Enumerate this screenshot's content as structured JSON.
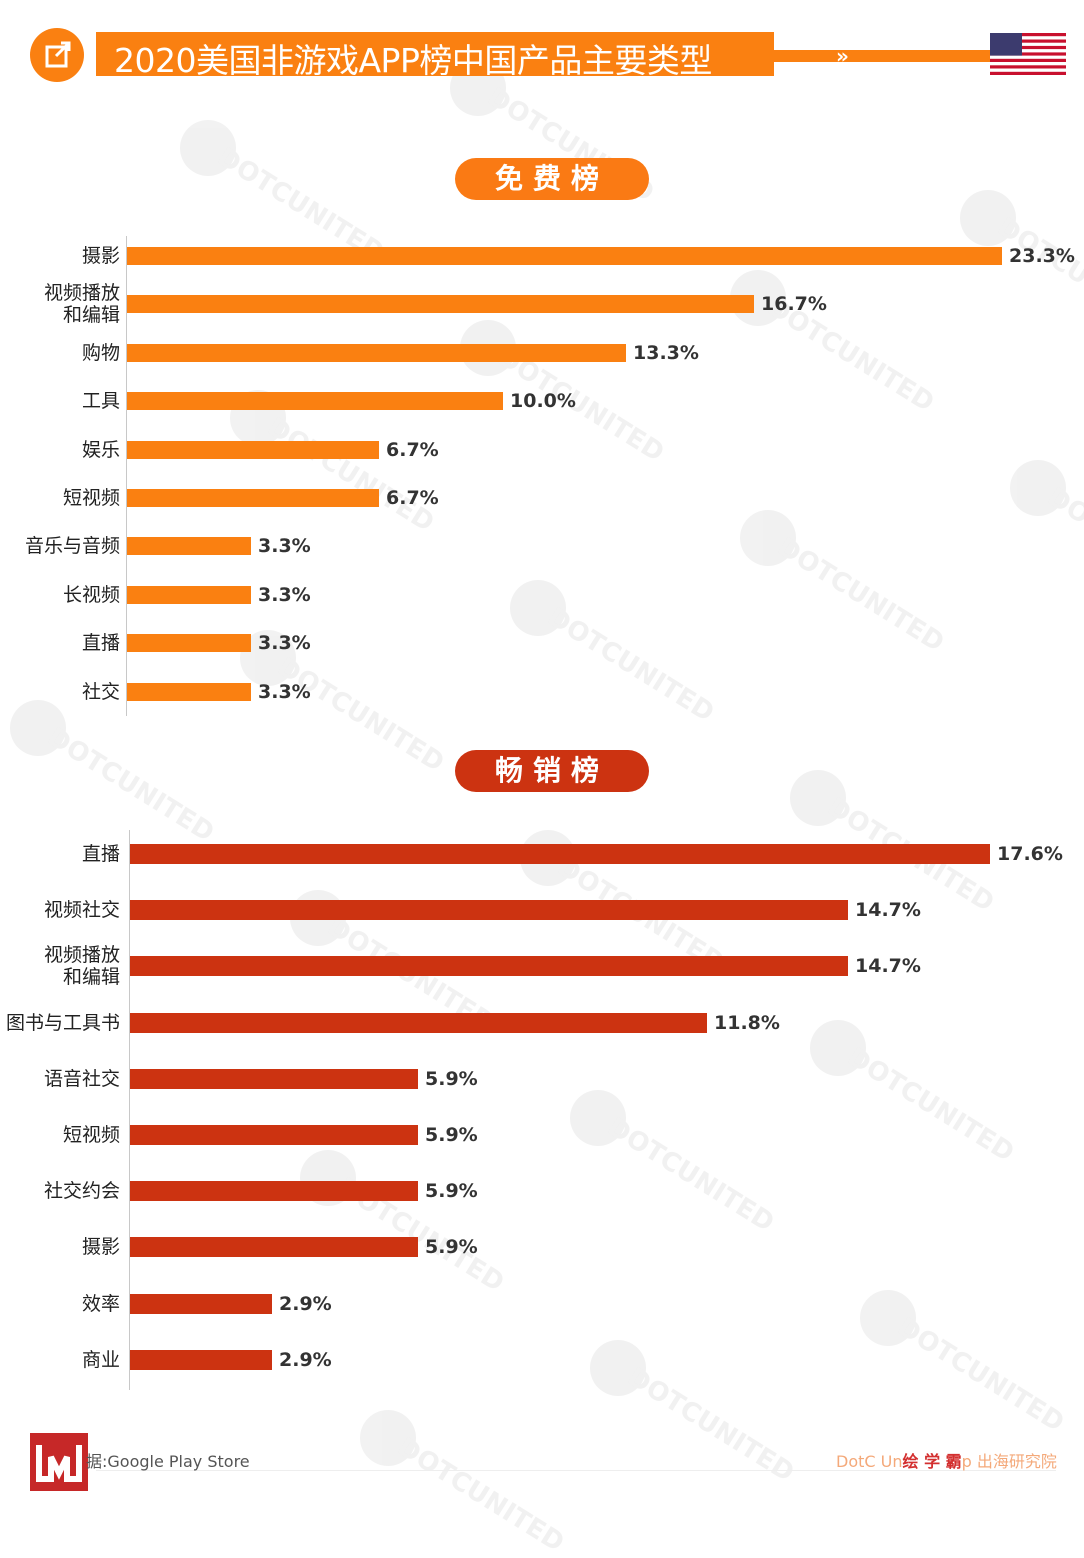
{
  "header": {
    "title": "2020美国非游戏APP榜中国产品主要类型",
    "arrows": "»",
    "flag_icon": "us-flag-icon",
    "accent_color": "#fa8011"
  },
  "watermark": {
    "text": "DOTCUNITED"
  },
  "chart_data": [
    {
      "type": "bar",
      "orientation": "horizontal",
      "title": "免费榜",
      "color": "#fa8011",
      "unit": "%",
      "categories": [
        "摄影",
        "视频播放\n和编辑",
        "购物",
        "工具",
        "娱乐",
        "短视频",
        "音乐与音频",
        "长视频",
        "直播",
        "社交"
      ],
      "values": [
        23.3,
        16.7,
        13.3,
        10.0,
        6.7,
        6.7,
        3.3,
        3.3,
        3.3,
        3.3
      ],
      "labels": [
        "23.3%",
        "16.7%",
        "13.3%",
        "10.0%",
        "6.7%",
        "6.7%",
        "3.3%",
        "3.3%",
        "3.3%",
        "3.3%"
      ],
      "xlim": [
        0,
        23.3
      ]
    },
    {
      "type": "bar",
      "orientation": "horizontal",
      "title": "畅销榜",
      "color": "#cc3311",
      "unit": "%",
      "categories": [
        "直播",
        "视频社交",
        "视频播放\n和编辑",
        "图书与工具书",
        "语音社交",
        "短视频",
        "社交约会",
        "摄影",
        "效率",
        "商业"
      ],
      "values": [
        17.6,
        14.7,
        14.7,
        11.8,
        5.9,
        5.9,
        5.9,
        5.9,
        2.9,
        2.9
      ],
      "labels": [
        "17.6%",
        "14.7%",
        "14.7%",
        "11.8%",
        "5.9%",
        "5.9%",
        "5.9%",
        "5.9%",
        "2.9%",
        "2.9%"
      ],
      "xlim": [
        0,
        17.6
      ]
    }
  ],
  "footer": {
    "source": "据:Google Play Store",
    "credit_prefix": "DotC Un",
    "credit_brand": "绘 学 霸",
    "credit_suffix": "p 出海研究院",
    "logo_icon": "publisher-logo-icon"
  }
}
